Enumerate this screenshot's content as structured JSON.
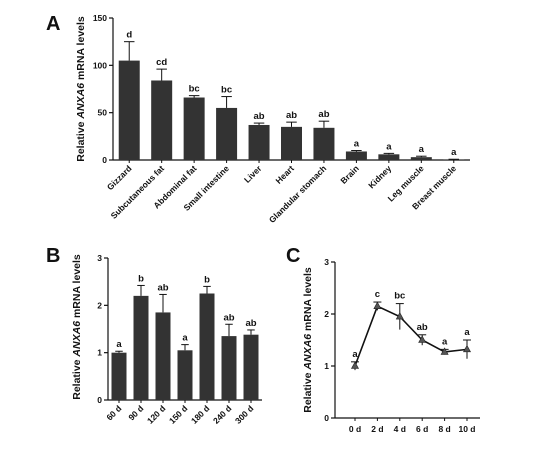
{
  "chart_data": [
    {
      "panel": "A",
      "type": "bar",
      "ylabel": "Relative ANXA6 mRNA levels",
      "ylim": [
        0,
        150
      ],
      "yticks": [
        0,
        50,
        100,
        150
      ],
      "categories": [
        "Gizzard",
        "Subcutaneous fat",
        "Abdominal fat",
        "Small intestine",
        "Liver",
        "Heart",
        "Glandular stomach",
        "Brain",
        "Kidney",
        "Leg muscle",
        "Breast muscle"
      ],
      "values": [
        105,
        84,
        66,
        55,
        37,
        35,
        34,
        9,
        6,
        3,
        0.5
      ],
      "errors": [
        20,
        12,
        2,
        12,
        2,
        5,
        7,
        1,
        1,
        1,
        0.3
      ],
      "significance": [
        "d",
        "cd",
        "bc",
        "bc",
        "ab",
        "ab",
        "ab",
        "a",
        "a",
        "a",
        "a"
      ],
      "bar_color": "#333333"
    },
    {
      "panel": "B",
      "type": "bar",
      "ylabel": "Relative ANXA6 mRNA levels",
      "ylim": [
        0,
        3
      ],
      "yticks": [
        0,
        1,
        2,
        3
      ],
      "categories": [
        "60 d",
        "90 d",
        "120 d",
        "150 d",
        "180 d",
        "240 d",
        "300 d"
      ],
      "values": [
        1.0,
        2.2,
        1.85,
        1.05,
        2.25,
        1.35,
        1.38
      ],
      "errors": [
        0.03,
        0.22,
        0.38,
        0.12,
        0.15,
        0.25,
        0.1
      ],
      "significance": [
        "a",
        "b",
        "ab",
        "a",
        "b",
        "ab",
        "ab"
      ],
      "bar_color": "#333333"
    },
    {
      "panel": "C",
      "type": "line",
      "ylabel": "Relative ANXA6 mRNA levels",
      "ylim": [
        0,
        3
      ],
      "yticks": [
        0,
        1,
        2,
        3
      ],
      "categories": [
        "0 d",
        "2 d",
        "4 d",
        "6 d",
        "8 d",
        "10 d"
      ],
      "values": [
        1.0,
        2.15,
        1.95,
        1.5,
        1.27,
        1.32
      ],
      "errors": [
        0.08,
        0.08,
        0.25,
        0.1,
        0.05,
        0.18
      ],
      "significance": [
        "a",
        "c",
        "bc",
        "ab",
        "a",
        "a"
      ],
      "line_color": "#111111"
    }
  ]
}
